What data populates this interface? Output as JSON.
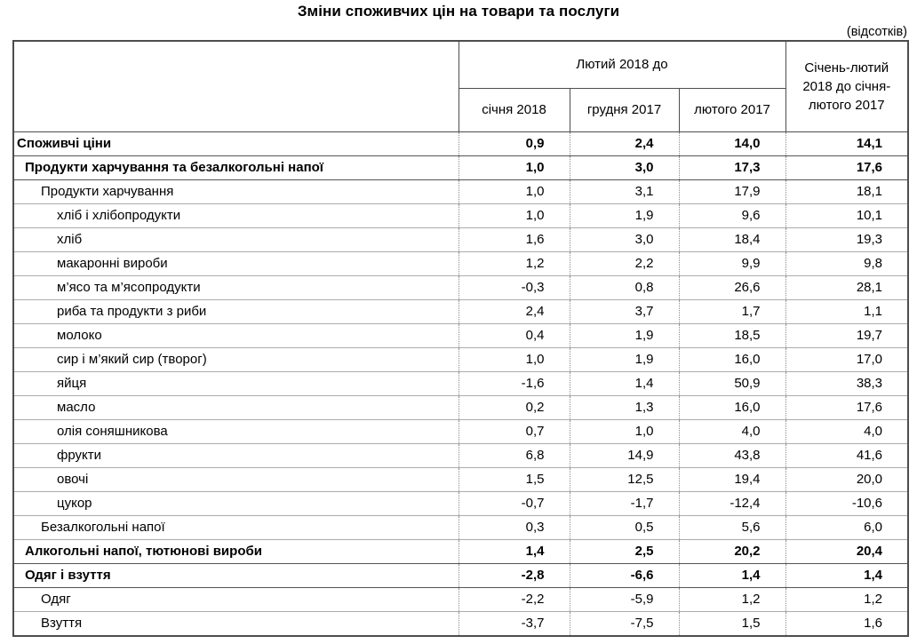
{
  "title": "Зміни споживчих цін на товари та послуги",
  "units_note": "(відсотків)",
  "chart_data": {
    "type": "table",
    "title": "Зміни споживчих цін на товари та послуги",
    "units": "(відсотків)",
    "column_group_header": "Лютий 2018 до",
    "sub_headers": [
      "січня 2018",
      "грудня 2017",
      "лютого 2017"
    ],
    "last_column_header": "Січень-лютий 2018 до січня-лютого 2017",
    "rows": [
      {
        "label": "Споживчі ціни",
        "indent": 0,
        "bold": true,
        "values": [
          "0,9",
          "2,4",
          "14,0",
          "14,1"
        ]
      },
      {
        "label": "Продукти харчування та безалкогольні напої",
        "indent": 1,
        "bold": true,
        "values": [
          "1,0",
          "3,0",
          "17,3",
          "17,6"
        ]
      },
      {
        "label": "Продукти харчування",
        "indent": 2,
        "bold": false,
        "values": [
          "1,0",
          "3,1",
          "17,9",
          "18,1"
        ]
      },
      {
        "label": "хліб і хлібопродукти",
        "indent": 3,
        "bold": false,
        "values": [
          "1,0",
          "1,9",
          "9,6",
          "10,1"
        ]
      },
      {
        "label": "хліб",
        "indent": 3,
        "bold": false,
        "values": [
          "1,6",
          "3,0",
          "18,4",
          "19,3"
        ]
      },
      {
        "label": "макаронні вироби",
        "indent": 3,
        "bold": false,
        "values": [
          "1,2",
          "2,2",
          "9,9",
          "9,8"
        ]
      },
      {
        "label": "м’ясо та м’ясопродукти",
        "indent": 3,
        "bold": false,
        "values": [
          "-0,3",
          "0,8",
          "26,6",
          "28,1"
        ]
      },
      {
        "label": "риба та продукти з риби",
        "indent": 3,
        "bold": false,
        "values": [
          "2,4",
          "3,7",
          "1,7",
          "1,1"
        ]
      },
      {
        "label": "молоко",
        "indent": 3,
        "bold": false,
        "values": [
          "0,4",
          "1,9",
          "18,5",
          "19,7"
        ]
      },
      {
        "label": "сир і м’який сир (творог)",
        "indent": 3,
        "bold": false,
        "values": [
          "1,0",
          "1,9",
          "16,0",
          "17,0"
        ]
      },
      {
        "label": "яйця",
        "indent": 3,
        "bold": false,
        "values": [
          "-1,6",
          "1,4",
          "50,9",
          "38,3"
        ]
      },
      {
        "label": "масло",
        "indent": 3,
        "bold": false,
        "values": [
          "0,2",
          "1,3",
          "16,0",
          "17,6"
        ]
      },
      {
        "label": "олія соняшникова",
        "indent": 3,
        "bold": false,
        "values": [
          "0,7",
          "1,0",
          "4,0",
          "4,0"
        ]
      },
      {
        "label": "фрукти",
        "indent": 3,
        "bold": false,
        "values": [
          "6,8",
          "14,9",
          "43,8",
          "41,6"
        ]
      },
      {
        "label": "овочі",
        "indent": 3,
        "bold": false,
        "values": [
          "1,5",
          "12,5",
          "19,4",
          "20,0"
        ]
      },
      {
        "label": "цукор",
        "indent": 3,
        "bold": false,
        "values": [
          "-0,7",
          "-1,7",
          "-12,4",
          "-10,6"
        ]
      },
      {
        "label": "Безалкогольні напої",
        "indent": 2,
        "bold": false,
        "values": [
          "0,3",
          "0,5",
          "5,6",
          "6,0"
        ]
      },
      {
        "label": "Алкогольні напої, тютюнові вироби",
        "indent": 1,
        "bold": true,
        "values": [
          "1,4",
          "2,5",
          "20,2",
          "20,4"
        ]
      },
      {
        "label": "Одяг і взуття",
        "indent": 1,
        "bold": true,
        "values": [
          "-2,8",
          "-6,6",
          "1,4",
          "1,4"
        ]
      },
      {
        "label": "Одяг",
        "indent": 2,
        "bold": false,
        "values": [
          "-2,2",
          "-5,9",
          "1,2",
          "1,2"
        ]
      },
      {
        "label": "Взуття",
        "indent": 2,
        "bold": false,
        "values": [
          "-3,7",
          "-7,5",
          "1,5",
          "1,6"
        ]
      }
    ]
  }
}
